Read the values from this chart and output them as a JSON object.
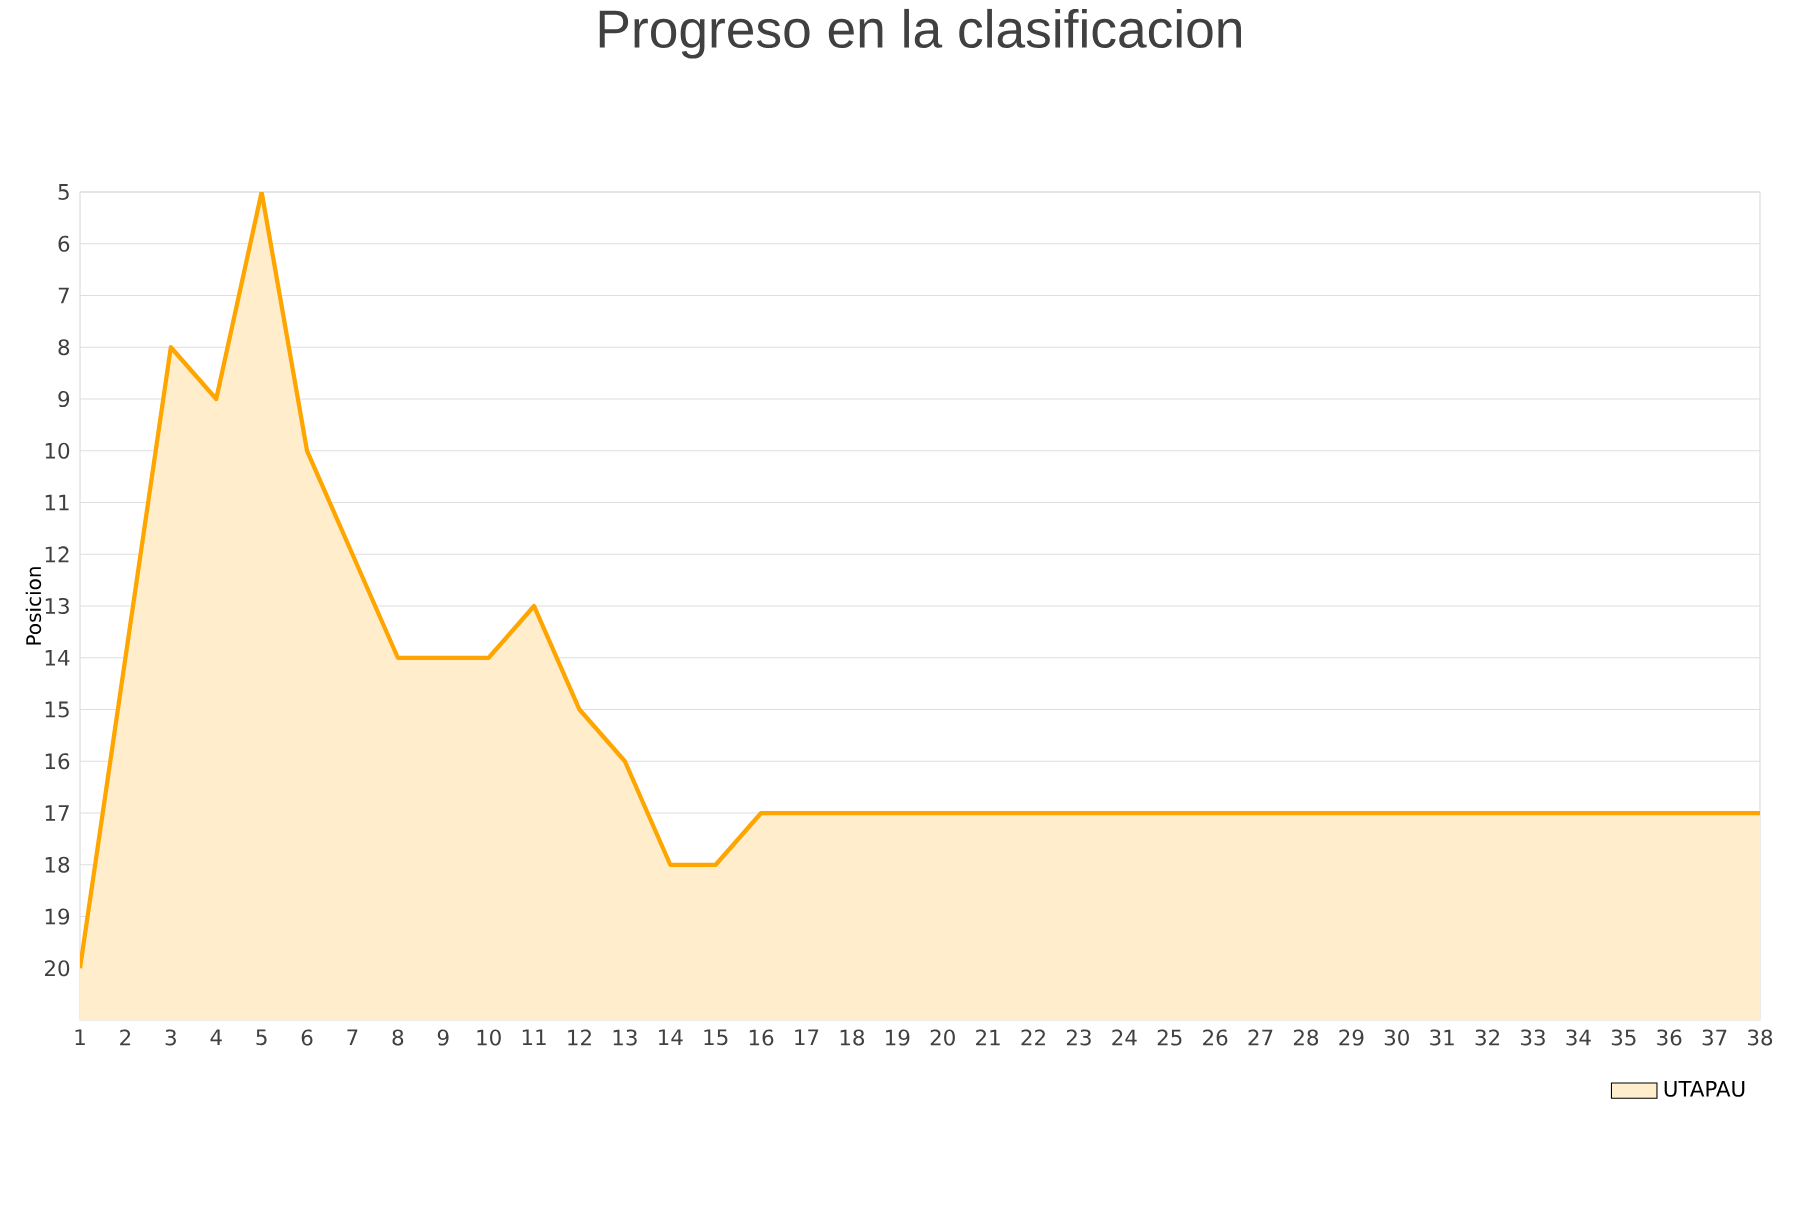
{
  "chart_data": {
    "type": "area",
    "title": "Progreso en la clasificacion",
    "ylabel": "Posicion",
    "x": [
      1,
      2,
      3,
      4,
      5,
      6,
      7,
      8,
      9,
      10,
      11,
      12,
      13,
      14,
      15,
      16,
      17,
      18,
      19,
      20,
      21,
      22,
      23,
      24,
      25,
      26,
      27,
      28,
      29,
      30,
      31,
      32,
      33,
      34,
      35,
      36,
      37,
      38
    ],
    "series": [
      {
        "name": "UTAPAU",
        "color": "#ffa500",
        "values": [
          20,
          14,
          8,
          9,
          5,
          10,
          12,
          14,
          14,
          14,
          13,
          15,
          16,
          18,
          18,
          17,
          17,
          17,
          17,
          17,
          17,
          17,
          17,
          17,
          17,
          17,
          17,
          17,
          17,
          17,
          17,
          17,
          17,
          17,
          17,
          17,
          17,
          17
        ]
      }
    ],
    "xlim": [
      1,
      38
    ],
    "xticks": [
      1,
      2,
      3,
      4,
      5,
      6,
      7,
      8,
      9,
      10,
      11,
      12,
      13,
      14,
      15,
      16,
      17,
      18,
      19,
      20,
      21,
      22,
      23,
      24,
      25,
      26,
      27,
      28,
      29,
      30,
      31,
      32,
      33,
      34,
      35,
      36,
      37,
      38
    ],
    "ylim": [
      21,
      5
    ],
    "yticks": [
      5,
      6,
      7,
      8,
      9,
      10,
      11,
      12,
      13,
      14,
      15,
      16,
      17,
      18,
      19,
      20
    ],
    "grid": "y",
    "legend": "bottom right",
    "marker": "none",
    "line_style": "solid"
  }
}
